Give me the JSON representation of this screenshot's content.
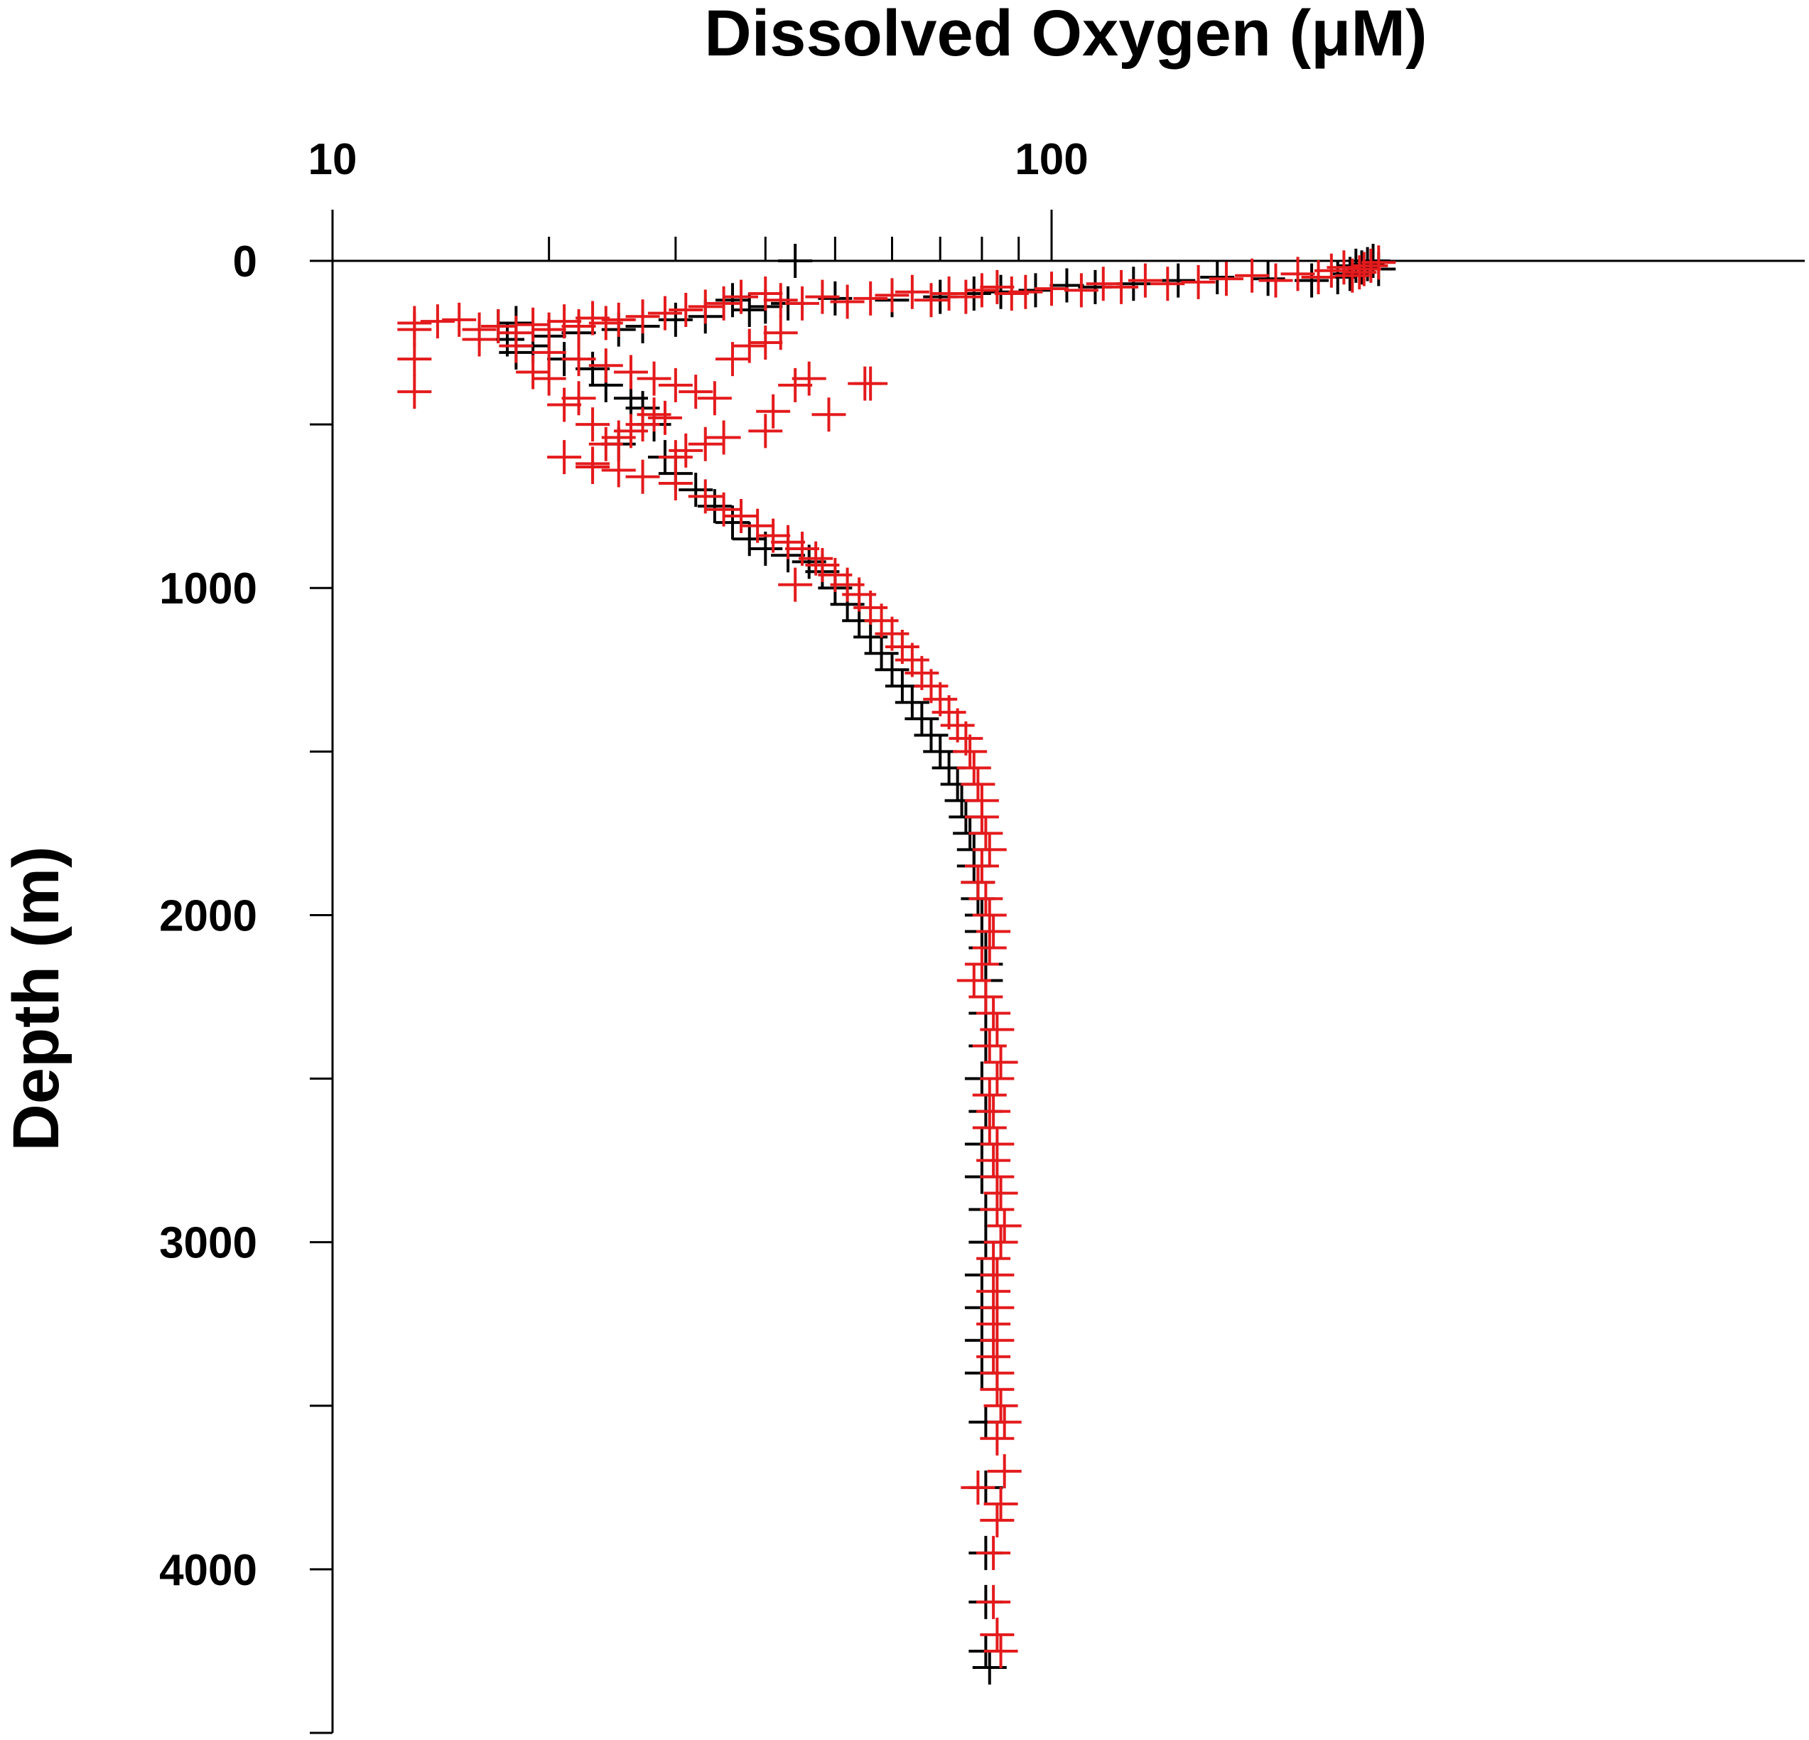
{
  "chart_data": {
    "type": "scatter",
    "title": "Dissolved Oxygen (μM)",
    "xlabel": "Dissolved Oxygen (μM)",
    "ylabel": "Depth (m)",
    "x_scale": "log",
    "xlim": [
      10,
      400
    ],
    "ylim": [
      0,
      4500
    ],
    "y_inverted": true,
    "x_ticks_labeled": [
      10,
      100
    ],
    "x_ticks_labels": [
      "10",
      "100"
    ],
    "x_minor_ticks": [
      20,
      30,
      40,
      50,
      60,
      70,
      80,
      90
    ],
    "y_ticks_labeled": [
      0,
      1000,
      2000,
      3000,
      4000
    ],
    "y_ticks_labels": [
      "0",
      "1000",
      "2000",
      "3000",
      "4000"
    ],
    "y_minor_ticks": [
      500,
      1500,
      2500,
      3500,
      4500
    ],
    "marker": "plus",
    "series": [
      {
        "color": "#000000",
        "points": [
          [
            280,
            0
          ],
          [
            275,
            10
          ],
          [
            270,
            20
          ],
          [
            265,
            15
          ],
          [
            285,
            25
          ],
          [
            260,
            40
          ],
          [
            250,
            50
          ],
          [
            230,
            60
          ],
          [
            200,
            55
          ],
          [
            170,
            50
          ],
          [
            150,
            60
          ],
          [
            130,
            70
          ],
          [
            115,
            80
          ],
          [
            105,
            75
          ],
          [
            95,
            90
          ],
          [
            85,
            95
          ],
          [
            78,
            100
          ],
          [
            70,
            110
          ],
          [
            60,
            120
          ],
          [
            50,
            115
          ],
          [
            44,
            0
          ],
          [
            43,
            130
          ],
          [
            40,
            140
          ],
          [
            38,
            150
          ],
          [
            36,
            120
          ],
          [
            33,
            170
          ],
          [
            30,
            180
          ],
          [
            27,
            200
          ],
          [
            25,
            210
          ],
          [
            22,
            220
          ],
          [
            20,
            230
          ],
          [
            18,
            190
          ],
          [
            17,
            200
          ],
          [
            17.5,
            240
          ],
          [
            18,
            280
          ],
          [
            19,
            260
          ],
          [
            21,
            300
          ],
          [
            23,
            330
          ],
          [
            24,
            380
          ],
          [
            26,
            420
          ],
          [
            27,
            450
          ],
          [
            28,
            500
          ],
          [
            25,
            560
          ],
          [
            29,
            600
          ],
          [
            30,
            650
          ],
          [
            32,
            700
          ],
          [
            34,
            750
          ],
          [
            36,
            800
          ],
          [
            38,
            850
          ],
          [
            40,
            880
          ],
          [
            43,
            900
          ],
          [
            46,
            920
          ],
          [
            48,
            950
          ],
          [
            50,
            1000
          ],
          [
            52,
            1050
          ],
          [
            54,
            1100
          ],
          [
            56,
            1150
          ],
          [
            58,
            1200
          ],
          [
            60,
            1250
          ],
          [
            62,
            1300
          ],
          [
            64,
            1350
          ],
          [
            66,
            1400
          ],
          [
            68,
            1450
          ],
          [
            70,
            1500
          ],
          [
            72,
            1550
          ],
          [
            74,
            1600
          ],
          [
            75,
            1650
          ],
          [
            76,
            1700
          ],
          [
            77,
            1750
          ],
          [
            78,
            1800
          ],
          [
            78,
            1850
          ],
          [
            79,
            1900
          ],
          [
            79,
            1950
          ],
          [
            80,
            2000
          ],
          [
            80,
            2050
          ],
          [
            81,
            2100
          ],
          [
            81,
            2150
          ],
          [
            81,
            2200
          ],
          [
            81,
            2300
          ],
          [
            81,
            2400
          ],
          [
            80,
            2500
          ],
          [
            81,
            2600
          ],
          [
            80,
            2700
          ],
          [
            80,
            2800
          ],
          [
            81,
            2900
          ],
          [
            81,
            3000
          ],
          [
            80,
            3100
          ],
          [
            80,
            3200
          ],
          [
            80,
            3300
          ],
          [
            80,
            3400
          ],
          [
            81,
            3550
          ],
          [
            81,
            3750
          ],
          [
            81,
            3950
          ],
          [
            81,
            4100
          ],
          [
            81,
            4250
          ],
          [
            82,
            4300
          ]
        ]
      },
      {
        "color": "#e41a1c",
        "points": [
          [
            285,
            5
          ],
          [
            278,
            15
          ],
          [
            272,
            25
          ],
          [
            268,
            35
          ],
          [
            262,
            45
          ],
          [
            255,
            20
          ],
          [
            245,
            30
          ],
          [
            235,
            50
          ],
          [
            220,
            40
          ],
          [
            205,
            60
          ],
          [
            190,
            45
          ],
          [
            175,
            55
          ],
          [
            160,
            65
          ],
          [
            145,
            70
          ],
          [
            135,
            60
          ],
          [
            125,
            80
          ],
          [
            118,
            70
          ],
          [
            110,
            90
          ],
          [
            100,
            85
          ],
          [
            92,
            95
          ],
          [
            88,
            100
          ],
          [
            84,
            80
          ],
          [
            80,
            90
          ],
          [
            76,
            110
          ],
          [
            72,
            100
          ],
          [
            68,
            120
          ],
          [
            64,
            95
          ],
          [
            60,
            105
          ],
          [
            56,
            115
          ],
          [
            52,
            125
          ],
          [
            48,
            110
          ],
          [
            45,
            130
          ],
          [
            42,
            120
          ],
          [
            40,
            100
          ],
          [
            37,
            110
          ],
          [
            35,
            130
          ],
          [
            33,
            140
          ],
          [
            31,
            150
          ],
          [
            29,
            160
          ],
          [
            27,
            170
          ],
          [
            25,
            180
          ],
          [
            24,
            190
          ],
          [
            23,
            175
          ],
          [
            22,
            200
          ],
          [
            21,
            185
          ],
          [
            20,
            210
          ],
          [
            19,
            195
          ],
          [
            18,
            220
          ],
          [
            17,
            200
          ],
          [
            16,
            210
          ],
          [
            15,
            180
          ],
          [
            14,
            185
          ],
          [
            13,
            190
          ],
          [
            13,
            210
          ],
          [
            13,
            300
          ],
          [
            13,
            400
          ],
          [
            16,
            240
          ],
          [
            18,
            260
          ],
          [
            20,
            280
          ],
          [
            22,
            300
          ],
          [
            24,
            320
          ],
          [
            26,
            340
          ],
          [
            28,
            360
          ],
          [
            30,
            380
          ],
          [
            32,
            400
          ],
          [
            34,
            420
          ],
          [
            36,
            300
          ],
          [
            38,
            260
          ],
          [
            40,
            250
          ],
          [
            42,
            220
          ],
          [
            44,
            380
          ],
          [
            46,
            360
          ],
          [
            41,
            460
          ],
          [
            40,
            520
          ],
          [
            35,
            540
          ],
          [
            33,
            560
          ],
          [
            31,
            580
          ],
          [
            29,
            480
          ],
          [
            28,
            470
          ],
          [
            27,
            500
          ],
          [
            26,
            520
          ],
          [
            25,
            540
          ],
          [
            24,
            560
          ],
          [
            23,
            500
          ],
          [
            22,
            420
          ],
          [
            21,
            440
          ],
          [
            20,
            360
          ],
          [
            19,
            340
          ],
          [
            21,
            600
          ],
          [
            23,
            620
          ],
          [
            25,
            640
          ],
          [
            27,
            660
          ],
          [
            30,
            680
          ],
          [
            33,
            720
          ],
          [
            35,
            760
          ],
          [
            37,
            780
          ],
          [
            39,
            810
          ],
          [
            41,
            840
          ],
          [
            43,
            860
          ],
          [
            45,
            880
          ],
          [
            47,
            910
          ],
          [
            48,
            930
          ],
          [
            50,
            960
          ],
          [
            52,
            990
          ],
          [
            54,
            1020
          ],
          [
            56,
            1060
          ],
          [
            58,
            1100
          ],
          [
            60,
            1140
          ],
          [
            62,
            1180
          ],
          [
            64,
            1220
          ],
          [
            66,
            1260
          ],
          [
            68,
            1300
          ],
          [
            70,
            1340
          ],
          [
            72,
            1380
          ],
          [
            74,
            1420
          ],
          [
            76,
            1460
          ],
          [
            77,
            1500
          ],
          [
            78,
            1550
          ],
          [
            79,
            1600
          ],
          [
            80,
            1650
          ],
          [
            80,
            1700
          ],
          [
            81,
            1750
          ],
          [
            82,
            1800
          ],
          [
            80,
            1850
          ],
          [
            79,
            1900
          ],
          [
            81,
            1950
          ],
          [
            82,
            2000
          ],
          [
            83,
            2050
          ],
          [
            82,
            2100
          ],
          [
            80,
            2150
          ],
          [
            78,
            2200
          ],
          [
            81,
            2250
          ],
          [
            83,
            2300
          ],
          [
            84,
            2350
          ],
          [
            82,
            2400
          ],
          [
            85,
            2450
          ],
          [
            84,
            2500
          ],
          [
            82,
            2550
          ],
          [
            83,
            2600
          ],
          [
            82,
            2650
          ],
          [
            84,
            2700
          ],
          [
            83,
            2750
          ],
          [
            84,
            2800
          ],
          [
            85,
            2850
          ],
          [
            84,
            2900
          ],
          [
            86,
            2950
          ],
          [
            85,
            3000
          ],
          [
            83,
            3050
          ],
          [
            84,
            3100
          ],
          [
            83,
            3150
          ],
          [
            84,
            3200
          ],
          [
            83,
            3250
          ],
          [
            84,
            3300
          ],
          [
            83,
            3350
          ],
          [
            84,
            3400
          ],
          [
            84,
            3450
          ],
          [
            85,
            3500
          ],
          [
            86,
            3550
          ],
          [
            84,
            3600
          ],
          [
            86,
            3700
          ],
          [
            79,
            3750
          ],
          [
            85,
            3800
          ],
          [
            84,
            3850
          ],
          [
            83,
            3950
          ],
          [
            83,
            4100
          ],
          [
            84,
            4200
          ],
          [
            85,
            4250
          ],
          [
            30,
            600
          ],
          [
            44,
            990
          ],
          [
            49,
            470
          ],
          [
            55,
            375
          ],
          [
            56,
            375
          ],
          [
            23,
            630
          ]
        ]
      }
    ]
  }
}
